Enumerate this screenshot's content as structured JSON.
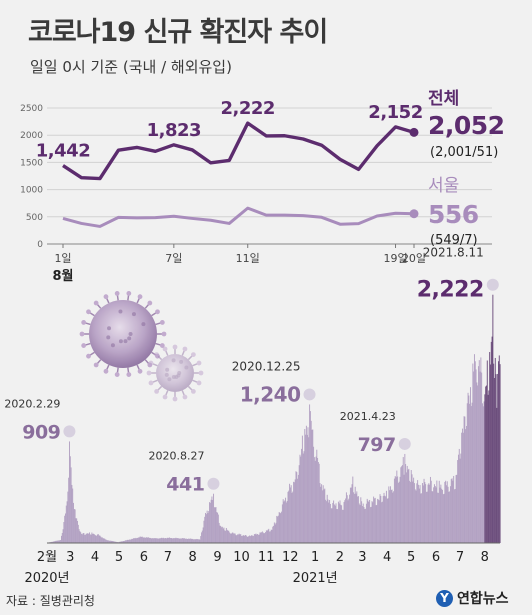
{
  "title": "코로나19 신규 확진자 추이",
  "subtitle": "일일 0시 기준 (국내 / 해외유입)",
  "colors": {
    "total": "#5c2c6e",
    "seoul": "#a88cbc",
    "area": "#b3a2c3",
    "highlight": "#6d4e7d",
    "marker": "#d7d0df"
  },
  "source": "자료 : 질병관리청",
  "logo": {
    "icon": "yonhap-logo-icon",
    "mark": "Y",
    "text": "연합뉴스"
  },
  "chart_data": [
    {
      "type": "line",
      "title": "",
      "xlabel": "",
      "ylabel": "",
      "ylim": [
        0,
        2500
      ],
      "y_ticks": [
        0,
        500,
        1000,
        1500,
        2000,
        2500
      ],
      "grid": true,
      "x": [
        1,
        2,
        3,
        4,
        5,
        6,
        7,
        8,
        9,
        10,
        11,
        12,
        13,
        14,
        15,
        16,
        17,
        18,
        19,
        20
      ],
      "x_tick_labels": [
        {
          "x": 1,
          "label": "1일"
        },
        {
          "x": 7,
          "label": "7일"
        },
        {
          "x": 11,
          "label": "11일"
        },
        {
          "x": 19,
          "label": "19일"
        },
        {
          "x": 20,
          "label": "20일"
        }
      ],
      "month_label": "8월",
      "series": [
        {
          "name": "전체",
          "color": "#5c2c6e",
          "values": [
            1442,
            1219,
            1202,
            1725,
            1776,
            1704,
            1823,
            1729,
            1492,
            1537,
            2222,
            1987,
            1990,
            1930,
            1816,
            1555,
            1372,
            1805,
            2152,
            2052
          ],
          "point_labels": [
            {
              "x": 1,
              "text": "1,442"
            },
            {
              "x": 7,
              "text": "1,823"
            },
            {
              "x": 11,
              "text": "2,222"
            },
            {
              "x": 19,
              "text": "2,152"
            }
          ],
          "end_value": "2,052",
          "end_detail": "(2,001/51)"
        },
        {
          "name": "서울",
          "color": "#a88cbc",
          "values": [
            470,
            378,
            323,
            490,
            480,
            484,
            510,
            470,
            436,
            378,
            660,
            531,
            530,
            521,
            491,
            364,
            374,
            514,
            566,
            556
          ],
          "end_value": "556",
          "end_detail": "(549/7)"
        }
      ]
    },
    {
      "type": "area",
      "title": "",
      "xlabel": "",
      "ylabel": "",
      "ylim": [
        0,
        2300
      ],
      "x_range": [
        "2020-02-01",
        "2021-08-20"
      ],
      "x_month_labels": [
        "2월",
        "3",
        "4",
        "5",
        "6",
        "7",
        "8",
        "9",
        "10",
        "11",
        "12",
        "1",
        "2",
        "3",
        "4",
        "5",
        "6",
        "7",
        "8"
      ],
      "year_labels": [
        {
          "at": "2020-02-01",
          "text": "2020년"
        },
        {
          "at": "2021-01-01",
          "text": "2021년"
        }
      ],
      "highlight_from": "2021-08-01",
      "profile": [
        [
          "2020-02-01",
          1
        ],
        [
          "2020-02-18",
          30
        ],
        [
          "2020-02-22",
          200
        ],
        [
          "2020-02-26",
          430
        ],
        [
          "2020-02-29",
          909
        ],
        [
          "2020-03-03",
          600
        ],
        [
          "2020-03-08",
          250
        ],
        [
          "2020-03-15",
          90
        ],
        [
          "2020-03-25",
          100
        ],
        [
          "2020-04-05",
          80
        ],
        [
          "2020-04-15",
          30
        ],
        [
          "2020-04-30",
          8
        ],
        [
          "2020-05-12",
          30
        ],
        [
          "2020-05-28",
          60
        ],
        [
          "2020-06-15",
          45
        ],
        [
          "2020-07-01",
          50
        ],
        [
          "2020-07-20",
          45
        ],
        [
          "2020-08-10",
          35
        ],
        [
          "2020-08-16",
          250
        ],
        [
          "2020-08-22",
          390
        ],
        [
          "2020-08-27",
          441
        ],
        [
          "2020-09-05",
          170
        ],
        [
          "2020-09-20",
          95
        ],
        [
          "2020-10-10",
          70
        ],
        [
          "2020-10-25",
          100
        ],
        [
          "2020-11-08",
          140
        ],
        [
          "2020-11-20",
          360
        ],
        [
          "2020-11-28",
          500
        ],
        [
          "2020-12-08",
          650
        ],
        [
          "2020-12-16",
          1000
        ],
        [
          "2020-12-25",
          1240
        ],
        [
          "2021-01-02",
          900
        ],
        [
          "2021-01-10",
          560
        ],
        [
          "2021-01-20",
          400
        ],
        [
          "2021-02-05",
          380
        ],
        [
          "2021-02-17",
          600
        ],
        [
          "2021-03-01",
          380
        ],
        [
          "2021-03-20",
          440
        ],
        [
          "2021-04-05",
          530
        ],
        [
          "2021-04-15",
          690
        ],
        [
          "2021-04-23",
          797
        ],
        [
          "2021-05-10",
          560
        ],
        [
          "2021-05-25",
          600
        ],
        [
          "2021-06-10",
          560
        ],
        [
          "2021-06-25",
          620
        ],
        [
          "2021-07-05",
          1200
        ],
        [
          "2021-07-10",
          1378
        ],
        [
          "2021-07-22",
          1842
        ],
        [
          "2021-08-01",
          1500
        ],
        [
          "2021-08-07",
          1800
        ],
        [
          "2021-08-11",
          2222
        ],
        [
          "2021-08-16",
          1400
        ],
        [
          "2021-08-19",
          2152
        ],
        [
          "2021-08-20",
          2052
        ]
      ],
      "annotations": [
        {
          "date": "2021-08-11",
          "date_label": "2021.8.11",
          "value": "2,222",
          "size": "large"
        },
        {
          "date": "2020-12-25",
          "date_label": "2020.12.25",
          "value": "1,240",
          "size": "medium"
        },
        {
          "date": "2020-02-29",
          "date_label": "2020.2.29",
          "value": "909",
          "size": "small"
        },
        {
          "date": "2021-04-23",
          "date_label": "2021.4.23",
          "value": "797",
          "size": "small"
        },
        {
          "date": "2020-08-27",
          "date_label": "2020.8.27",
          "value": "441",
          "size": "small"
        }
      ]
    }
  ]
}
